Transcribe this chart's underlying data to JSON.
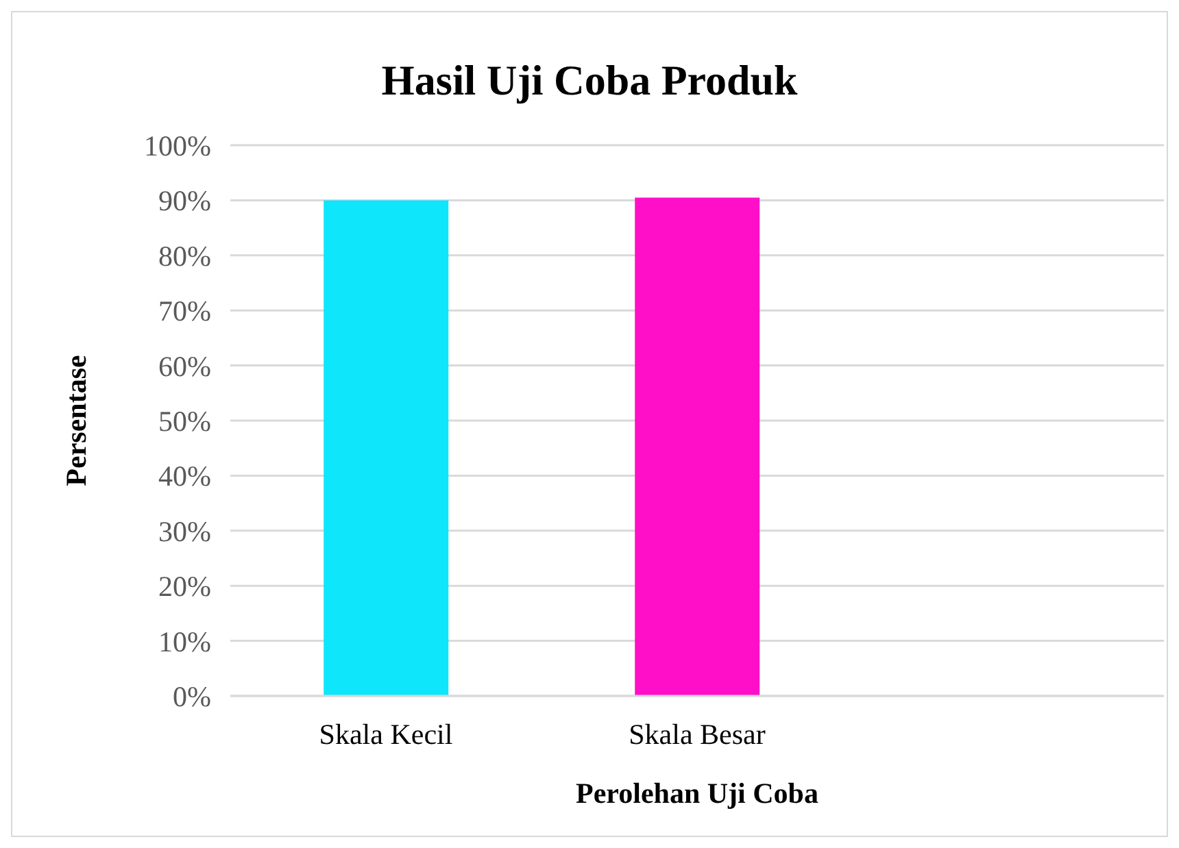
{
  "chart_data": {
    "type": "bar",
    "title": "Hasil Uji Coba Produk",
    "xlabel": "Perolehan Uji Coba",
    "ylabel": "Persentase",
    "categories": [
      "Skala Kecil",
      "Skala Besar",
      null
    ],
    "values": [
      90,
      90.5,
      null
    ],
    "colors": [
      "#0ee6fb",
      "#ff0fc8",
      null
    ],
    "ylim": [
      0,
      100
    ],
    "yticks": [
      {
        "value": 0,
        "label": "0%"
      },
      {
        "value": 10,
        "label": "10%"
      },
      {
        "value": 20,
        "label": "20%"
      },
      {
        "value": 30,
        "label": "30%"
      },
      {
        "value": 40,
        "label": "40%"
      },
      {
        "value": 50,
        "label": "50%"
      },
      {
        "value": 60,
        "label": "60%"
      },
      {
        "value": 70,
        "label": "70%"
      },
      {
        "value": 80,
        "label": "80%"
      },
      {
        "value": 90,
        "label": "90%"
      },
      {
        "value": 100,
        "label": "100%"
      }
    ],
    "grid": "y",
    "legend": false
  }
}
